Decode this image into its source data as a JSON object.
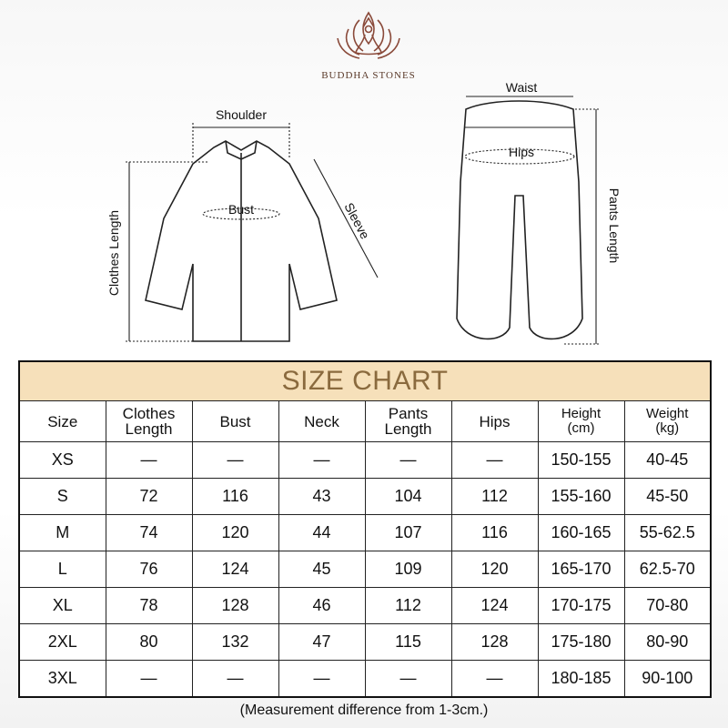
{
  "brand": {
    "name": "BUDDHA STONES"
  },
  "diagram": {
    "top_labels": {
      "shoulder": "Shoulder",
      "bust": "Bust",
      "sleeve": "Sleeve",
      "clothes_length": "Clothes Length"
    },
    "pants_labels": {
      "waist": "Waist",
      "hips": "Hips",
      "pants_length": "Pants Length"
    }
  },
  "table": {
    "title": "SIZE CHART",
    "headers": [
      {
        "l1": "Size",
        "l2": ""
      },
      {
        "l1": "Clothes",
        "l2": "Length"
      },
      {
        "l1": "Bust",
        "l2": ""
      },
      {
        "l1": "Neck",
        "l2": ""
      },
      {
        "l1": "Pants",
        "l2": "Length"
      },
      {
        "l1": "Hips",
        "l2": ""
      },
      {
        "l1": "Height",
        "l2": "(cm)"
      },
      {
        "l1": "Weight",
        "l2": "(kg)"
      }
    ],
    "rows": [
      [
        "XS",
        "—",
        "—",
        "—",
        "—",
        "—",
        "150-155",
        "40-45"
      ],
      [
        "S",
        "72",
        "116",
        "43",
        "104",
        "112",
        "155-160",
        "45-50"
      ],
      [
        "M",
        "74",
        "120",
        "44",
        "107",
        "116",
        "160-165",
        "55-62.5"
      ],
      [
        "L",
        "76",
        "124",
        "45",
        "109",
        "120",
        "165-170",
        "62.5-70"
      ],
      [
        "XL",
        "78",
        "128",
        "46",
        "112",
        "124",
        "170-175",
        "70-80"
      ],
      [
        "2XL",
        "80",
        "132",
        "47",
        "115",
        "128",
        "175-180",
        "80-90"
      ],
      [
        "3XL",
        "—",
        "—",
        "—",
        "—",
        "—",
        "180-185",
        "90-100"
      ]
    ],
    "title_bg": "#f6e0ba",
    "title_color": "#8a6a3e"
  },
  "note": "(Measurement difference from 1-3cm.)"
}
